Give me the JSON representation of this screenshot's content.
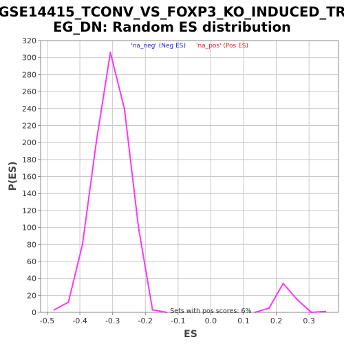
{
  "chart_data": {
    "type": "line",
    "title_lines": [
      "GSE14415_TCONV_VS_FOXP3_KO_INDUCED_TR",
      "EG_DN: Random ES distribution"
    ],
    "xlabel": "ES",
    "ylabel": "P(ES)",
    "xlim": [
      -0.52,
      0.39
    ],
    "ylim": [
      0,
      320
    ],
    "x_ticks": [
      -0.5,
      -0.4,
      -0.3,
      -0.2,
      -0.1,
      0.0,
      0.1,
      0.2,
      0.3
    ],
    "x_tick_labels": [
      "-0.5",
      "-0.4",
      "-0.3",
      "-0.2",
      "-0.1",
      "0.0",
      "0.1",
      "0.2",
      "0.3"
    ],
    "y_ticks": [
      0,
      20,
      40,
      60,
      80,
      100,
      120,
      140,
      160,
      180,
      200,
      220,
      240,
      260,
      280,
      300,
      320
    ],
    "y_tick_labels": [
      "0",
      "20",
      "40",
      "60",
      "80",
      "100",
      "120",
      "140",
      "160",
      "180",
      "200",
      "220",
      "240",
      "260",
      "280",
      "300",
      "320"
    ],
    "series": [
      {
        "name": "'na_neg' (Neg ES)",
        "color": "#ff33ff",
        "points": [
          {
            "x": -0.478,
            "y": 3
          },
          {
            "x": -0.435,
            "y": 12
          },
          {
            "x": -0.392,
            "y": 80
          },
          {
            "x": -0.35,
            "y": 200
          },
          {
            "x": -0.307,
            "y": 306
          },
          {
            "x": -0.264,
            "y": 240
          },
          {
            "x": -0.221,
            "y": 100
          },
          {
            "x": -0.178,
            "y": 3
          },
          {
            "x": -0.135,
            "y": 0
          }
        ]
      },
      {
        "name": "'na_pos' (Pos ES)",
        "color": "#ff33ff",
        "points": [
          {
            "x": 0.135,
            "y": 0
          },
          {
            "x": 0.178,
            "y": 5
          },
          {
            "x": 0.221,
            "y": 34
          },
          {
            "x": 0.264,
            "y": 15
          },
          {
            "x": 0.307,
            "y": 0
          },
          {
            "x": 0.35,
            "y": 1
          }
        ]
      }
    ],
    "legend": [
      {
        "label": "'na_neg' (Neg ES)",
        "color": "#1f1fd6"
      },
      {
        "label": "'na_pos' (Pos ES)",
        "color": "#e0202a"
      }
    ],
    "annotation": "Sets with pos scores: 6%",
    "grid": true,
    "colors": {
      "grid": "#c8c8c8",
      "axis": "#888888",
      "line": "#ff33ff"
    }
  }
}
